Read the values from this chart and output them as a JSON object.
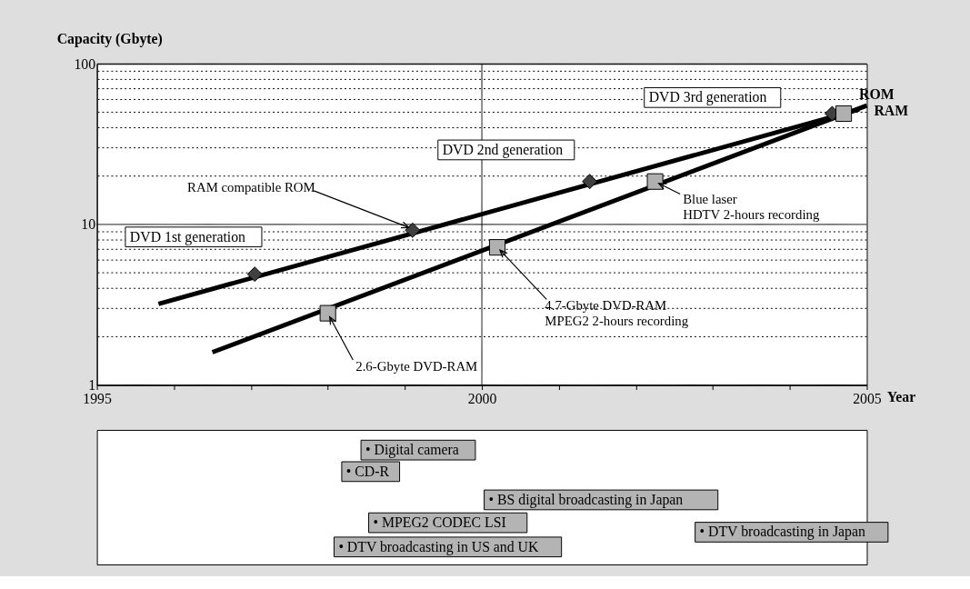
{
  "chart_data": [
    {
      "type": "line",
      "xlabel": "Year",
      "ylabel": "Capacity (Gbyte)",
      "xlim": [
        1995,
        2005
      ],
      "ylim": [
        1,
        100
      ],
      "log": "y",
      "grid": "y",
      "xticks": [
        1995,
        {
          "value": 1996,
          "label": null
        },
        {
          "value": 1997,
          "label": null
        },
        {
          "value": 1998,
          "label": null
        },
        {
          "value": 1999,
          "label": null
        },
        2000,
        {
          "value": 2001,
          "label": null
        },
        {
          "value": 2002,
          "label": null
        },
        {
          "value": 2003,
          "label": null
        },
        {
          "value": 2004,
          "label": null
        },
        2005
      ],
      "yticks": [
        1,
        {
          "value": 2,
          "label": null
        },
        {
          "value": 3,
          "label": null
        },
        {
          "value": 4,
          "label": null
        },
        {
          "value": 5,
          "label": null
        },
        {
          "value": 6,
          "label": null
        },
        {
          "value": 7,
          "label": null
        },
        {
          "value": 8,
          "label": null
        },
        {
          "value": 9,
          "label": null
        },
        10,
        {
          "value": 20,
          "label": null
        },
        {
          "value": 30,
          "label": null
        },
        {
          "value": 40,
          "label": null
        },
        {
          "value": 50,
          "label": null
        },
        {
          "value": 60,
          "label": null
        },
        {
          "value": 70,
          "label": null
        },
        {
          "value": 80,
          "label": null
        },
        {
          "value": 90,
          "label": null
        },
        100
      ],
      "ref_lines": [
        {
          "axis": "x",
          "value": 2000,
          "color": "#000000"
        }
      ],
      "series": [
        {
          "name": "ROM",
          "color": "#000000",
          "x": [
            1995.8,
            2004.9
          ],
          "values": [
            3.2,
            52
          ]
        },
        {
          "name": "RAM",
          "color": "#000000",
          "x": [
            1996.5,
            2005
          ],
          "values": [
            1.6,
            55
          ]
        },
        {
          "type": "scatter",
          "marker": "diamond",
          "color": "#404040",
          "x": [
            1997.05,
            1999.1,
            2001.4,
            2004.55
          ],
          "values": [
            4.9,
            9.2,
            18.5,
            49
          ]
        },
        {
          "type": "scatter",
          "marker": "square",
          "color": "#b0b0b0",
          "x": [
            1998.0,
            2000.2,
            2002.25,
            2004.7
          ],
          "values": [
            2.8,
            7.2,
            18.5,
            49
          ]
        }
      ],
      "annotations": [
        "DVD 3rd generation",
        "DVD 2nd generation",
        "DVD 1st generation",
        {
          "text": "RAM compatible ROM",
          "x": 1999.1,
          "y": 9.2
        },
        {
          "text": "Blue laser\nHDTV 2-hours recording",
          "x": 2002.25,
          "y": 18.5
        },
        {
          "text": "4.7-Gbyte DVD-RAM\nMPEG2  2-hours recording",
          "x": 2000.2,
          "y": 7.2
        },
        {
          "text": "2.6-Gbyte DVD-RAM",
          "x": 1998.0,
          "y": 2.8
        }
      ]
    },
    {
      "type": "other",
      "annotations": [
        "• Digital camera",
        "• CD-R",
        "• BS digital broadcasting in Japan",
        "• MPEG2 CODEC LSI",
        "• DTV broadcasting in Japan",
        "• DTV broadcasting in US and UK"
      ]
    }
  ]
}
